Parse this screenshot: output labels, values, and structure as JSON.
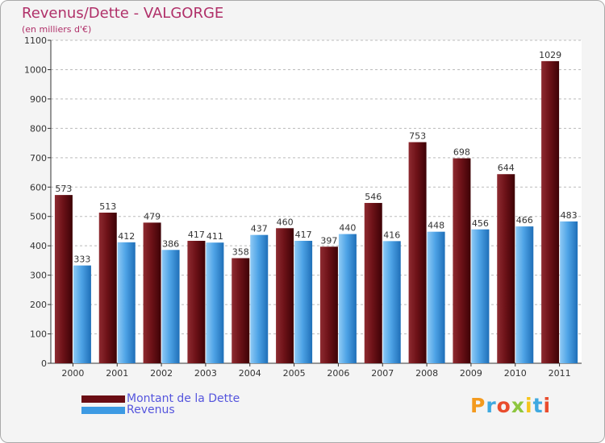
{
  "chart_data": {
    "type": "bar",
    "title": "Revenus/Dette - VALGORGE",
    "subtitle": "(en milliers d'€)",
    "categories": [
      "2000",
      "2001",
      "2002",
      "2003",
      "2004",
      "2005",
      "2006",
      "2007",
      "2008",
      "2009",
      "2010",
      "2011"
    ],
    "series": [
      {
        "name": "Montant de la Dette",
        "color": "#6b0d14",
        "values": [
          573,
          513,
          479,
          417,
          358,
          460,
          397,
          546,
          753,
          698,
          644,
          1029
        ]
      },
      {
        "name": "Revenus",
        "color": "#3d9ae3",
        "values": [
          333,
          412,
          386,
          411,
          437,
          417,
          440,
          416,
          448,
          456,
          466,
          483
        ]
      }
    ],
    "ylim": [
      0,
      1100
    ],
    "yticks": [
      0,
      100,
      200,
      300,
      400,
      500,
      600,
      700,
      800,
      900,
      1000,
      1100
    ],
    "xlabel": "",
    "ylabel": "",
    "grid": true,
    "legend_position": "bottom-left"
  },
  "legend": {
    "debt_label": "Montant de la Dette",
    "revenue_label": "Revenus"
  },
  "logo": {
    "text": "Proxiti"
  }
}
